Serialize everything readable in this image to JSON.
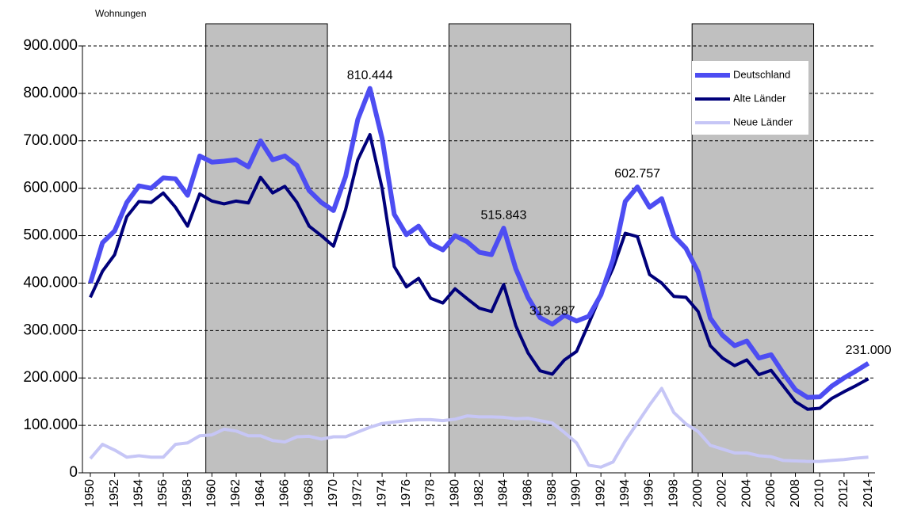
{
  "chart_data": {
    "type": "line",
    "ylabel": "Wohnungen",
    "x": [
      1950,
      1951,
      1952,
      1953,
      1954,
      1955,
      1956,
      1957,
      1958,
      1959,
      1960,
      1961,
      1962,
      1963,
      1964,
      1965,
      1966,
      1967,
      1968,
      1969,
      1970,
      1971,
      1972,
      1973,
      1974,
      1975,
      1976,
      1977,
      1978,
      1979,
      1980,
      1981,
      1982,
      1983,
      1984,
      1985,
      1986,
      1987,
      1988,
      1989,
      1990,
      1991,
      1992,
      1993,
      1994,
      1995,
      1996,
      1997,
      1998,
      1999,
      2000,
      2001,
      2002,
      2003,
      2004,
      2005,
      2006,
      2007,
      2008,
      2009,
      2010,
      2011,
      2012,
      2013,
      2014
    ],
    "series": [
      {
        "name": "Deutschland",
        "color": "#4d4df2",
        "width": 6,
        "values": [
          400000,
          485000,
          510000,
          570000,
          605000,
          600000,
          622000,
          620000,
          585000,
          668000,
          655000,
          657000,
          660000,
          645000,
          700000,
          660000,
          668000,
          648000,
          595000,
          570000,
          553000,
          625000,
          745000,
          810444,
          705000,
          545000,
          502000,
          520000,
          483000,
          470000,
          500000,
          487000,
          465000,
          460000,
          515843,
          430000,
          370000,
          327000,
          313287,
          332000,
          320000,
          330000,
          375000,
          450000,
          572000,
          602757,
          560000,
          578000,
          500000,
          473000,
          423000,
          326000,
          290000,
          268000,
          278000,
          242000,
          249000,
          210000,
          175000,
          159000,
          160000,
          183000,
          200000,
          215000,
          231000
        ],
        "value_labels": [
          null,
          null,
          null,
          null,
          null,
          null,
          null,
          null,
          null,
          null,
          null,
          null,
          null,
          null,
          null,
          null,
          null,
          null,
          null,
          null,
          null,
          null,
          null,
          "810.444",
          null,
          null,
          null,
          null,
          null,
          null,
          null,
          null,
          null,
          null,
          "515.843",
          null,
          null,
          null,
          "313.287",
          null,
          null,
          null,
          null,
          null,
          null,
          "602.757",
          null,
          null,
          null,
          null,
          null,
          null,
          null,
          null,
          null,
          null,
          null,
          null,
          null,
          null,
          null,
          null,
          null,
          null,
          "231.000"
        ]
      },
      {
        "name": "Alte Länder",
        "color": "#00007a",
        "width": 4,
        "values": [
          370000,
          425000,
          460000,
          540000,
          572000,
          570000,
          590000,
          560000,
          520000,
          588000,
          573000,
          567000,
          573000,
          569000,
          623000,
          590000,
          604000,
          570000,
          520000,
          500000,
          478000,
          555000,
          660000,
          713000,
          600000,
          435000,
          392000,
          410000,
          368000,
          358000,
          388000,
          367000,
          347000,
          340000,
          397000,
          310000,
          253000,
          215000,
          208000,
          238000,
          256000,
          315000,
          375000,
          432000,
          505000,
          498000,
          418000,
          400000,
          372000,
          370000,
          340000,
          268000,
          242000,
          226000,
          238000,
          207000,
          216000,
          183000,
          150000,
          134000,
          136000,
          157000,
          171000,
          184000,
          198000
        ]
      },
      {
        "name": "Neue Länder",
        "color": "#c6c6f6",
        "width": 4,
        "values": [
          30000,
          60000,
          48000,
          33000,
          36000,
          33000,
          33000,
          60000,
          63000,
          78000,
          80000,
          92000,
          88000,
          78000,
          78000,
          68000,
          65000,
          76000,
          77000,
          71000,
          76000,
          76000,
          86000,
          96000,
          104000,
          107000,
          110000,
          112000,
          112000,
          110000,
          113000,
          120000,
          118000,
          118000,
          117000,
          114000,
          115000,
          110000,
          105000,
          85000,
          63000,
          16000,
          12000,
          23000,
          67000,
          105000,
          143000,
          178000,
          127000,
          103000,
          87000,
          58000,
          50000,
          42000,
          42000,
          36000,
          34000,
          26000,
          25000,
          24000,
          24000,
          26000,
          28000,
          31000,
          33000
        ]
      }
    ],
    "shaded": [
      [
        1959.5,
        1969.5
      ],
      [
        1979.5,
        1989.5
      ],
      [
        1999.5,
        2009.5
      ]
    ],
    "xlim": [
      1949.35,
      2014.55
    ],
    "xticks": [
      1950,
      1952,
      1954,
      1956,
      1958,
      1960,
      1962,
      1964,
      1966,
      1968,
      1970,
      1972,
      1974,
      1976,
      1978,
      1980,
      1982,
      1984,
      1986,
      1988,
      1990,
      1992,
      1994,
      1996,
      1998,
      2000,
      2002,
      2004,
      2006,
      2008,
      2010,
      2012,
      2014
    ],
    "ylim": [
      0,
      900000
    ],
    "yticks": [
      0,
      {
        "value": 100000,
        "label": "100.000"
      },
      {
        "value": 200000,
        "label": "200.000"
      },
      {
        "value": 300000,
        "label": "300.000"
      },
      {
        "value": 400000,
        "label": "400.000"
      },
      {
        "value": 500000,
        "label": "500.000"
      },
      {
        "value": 600000,
        "label": "600.000"
      },
      {
        "value": 700000,
        "label": "700.000"
      },
      {
        "value": 800000,
        "label": "800.000"
      },
      {
        "value": 900000,
        "label": "900.000"
      }
    ],
    "grid": true,
    "legend": "upper right"
  }
}
